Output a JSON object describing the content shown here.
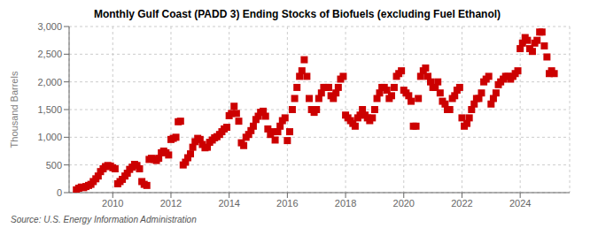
{
  "chart_data": {
    "type": "scatter",
    "title": "Monthly Gulf Coast (PADD 3) Ending Stocks of Biofuels (excluding Fuel Ethanol)",
    "ylabel": "Thousand Barrels",
    "annotations": [
      "Source: U.S. Energy Information Administration"
    ],
    "color": "#cc0000",
    "marker": "square",
    "grid": true,
    "xlim": [
      2008.5,
      2025.7
    ],
    "xticks": [
      2010,
      2012,
      2014,
      2016,
      2018,
      2020,
      2022,
      2024
    ],
    "ylim": [
      0,
      3000
    ],
    "yticks": [
      0,
      500,
      {
        "value": 1000,
        "label": "1,000"
      },
      {
        "value": 1500,
        "label": "1,500"
      },
      {
        "value": 2000,
        "label": "2,000"
      },
      {
        "value": 2500,
        "label": "2,500"
      },
      {
        "value": 3000,
        "label": "3,000"
      }
    ],
    "x": [
      2008.75,
      2008.83,
      2008.92,
      2009.0,
      2009.08,
      2009.17,
      2009.25,
      2009.33,
      2009.42,
      2009.5,
      2009.58,
      2009.67,
      2009.75,
      2009.83,
      2009.92,
      2010.0,
      2010.08,
      2010.17,
      2010.25,
      2010.33,
      2010.42,
      2010.5,
      2010.58,
      2010.67,
      2010.75,
      2010.83,
      2010.92,
      2011.0,
      2011.08,
      2011.17,
      2011.25,
      2011.33,
      2011.42,
      2011.5,
      2011.58,
      2011.67,
      2011.75,
      2011.83,
      2011.92,
      2012.0,
      2012.08,
      2012.17,
      2012.25,
      2012.33,
      2012.42,
      2012.5,
      2012.58,
      2012.67,
      2012.75,
      2012.83,
      2012.92,
      2013.0,
      2013.08,
      2013.17,
      2013.25,
      2013.33,
      2013.42,
      2013.5,
      2013.58,
      2013.67,
      2013.75,
      2013.83,
      2013.92,
      2014.0,
      2014.08,
      2014.17,
      2014.25,
      2014.33,
      2014.42,
      2014.5,
      2014.58,
      2014.67,
      2014.75,
      2014.83,
      2014.92,
      2015.0,
      2015.08,
      2015.17,
      2015.25,
      2015.33,
      2015.42,
      2015.5,
      2015.58,
      2015.67,
      2015.75,
      2015.83,
      2015.92,
      2016.0,
      2016.08,
      2016.17,
      2016.25,
      2016.33,
      2016.42,
      2016.5,
      2016.58,
      2016.67,
      2016.75,
      2016.83,
      2016.92,
      2017.0,
      2017.08,
      2017.17,
      2017.25,
      2017.33,
      2017.42,
      2017.5,
      2017.58,
      2017.67,
      2017.75,
      2017.83,
      2017.92,
      2018.0,
      2018.08,
      2018.17,
      2018.25,
      2018.33,
      2018.42,
      2018.5,
      2018.58,
      2018.67,
      2018.75,
      2018.83,
      2018.92,
      2019.0,
      2019.08,
      2019.17,
      2019.25,
      2019.33,
      2019.42,
      2019.5,
      2019.58,
      2019.67,
      2019.75,
      2019.83,
      2019.92,
      2020.0,
      2020.08,
      2020.17,
      2020.25,
      2020.33,
      2020.42,
      2020.5,
      2020.58,
      2020.67,
      2020.75,
      2020.83,
      2020.92,
      2021.0,
      2021.08,
      2021.17,
      2021.25,
      2021.33,
      2021.42,
      2021.5,
      2021.58,
      2021.67,
      2021.75,
      2021.83,
      2021.92,
      2022.0,
      2022.08,
      2022.17,
      2022.25,
      2022.33,
      2022.42,
      2022.5,
      2022.58,
      2022.67,
      2022.75,
      2022.83,
      2022.92,
      2023.0,
      2023.08,
      2023.17,
      2023.25,
      2023.33,
      2023.42,
      2023.5,
      2023.58,
      2023.67,
      2023.75,
      2023.83,
      2023.92,
      2024.0,
      2024.08,
      2024.17,
      2024.25,
      2024.33,
      2024.42,
      2024.5,
      2024.58,
      2024.67,
      2024.75,
      2024.83,
      2024.92,
      2025.0,
      2025.08,
      2025.17
    ],
    "values": [
      50,
      80,
      100,
      90,
      110,
      130,
      150,
      200,
      250,
      300,
      380,
      430,
      470,
      490,
      480,
      450,
      430,
      160,
      200,
      240,
      300,
      350,
      420,
      460,
      510,
      490,
      430,
      200,
      150,
      130,
      600,
      620,
      600,
      580,
      620,
      720,
      750,
      720,
      680,
      960,
      980,
      1000,
      1280,
      1290,
      500,
      550,
      630,
      700,
      820,
      920,
      980,
      960,
      870,
      810,
      820,
      910,
      950,
      990,
      1010,
      1050,
      1100,
      1150,
      1180,
      1390,
      1430,
      1560,
      1430,
      1290,
      900,
      850,
      1000,
      1050,
      1120,
      1200,
      1320,
      1380,
      1450,
      1470,
      1380,
      1150,
      1050,
      1100,
      950,
      1100,
      1200,
      1300,
      1350,
      940,
      1100,
      1500,
      1700,
      1900,
      2100,
      2200,
      2400,
      2100,
      1700,
      1500,
      1450,
      1500,
      1700,
      1800,
      1900,
      1900,
      1900,
      1750,
      1700,
      1800,
      1900,
      2050,
      2100,
      1400,
      1350,
      1300,
      1250,
      1200,
      1350,
      1400,
      1500,
      1400,
      1350,
      1300,
      1350,
      1500,
      1700,
      1800,
      1900,
      1900,
      1850,
      1700,
      1750,
      1900,
      2100,
      2150,
      2200,
      1850,
      1800,
      1750,
      1650,
      1200,
      1200,
      1700,
      2100,
      2200,
      2250,
      2100,
      2000,
      1900,
      1900,
      2000,
      1800,
      1650,
      1600,
      1500,
      1500,
      1700,
      1750,
      1850,
      1900,
      1350,
      1200,
      1250,
      1350,
      1500,
      1600,
      1700,
      1700,
      1800,
      2000,
      2050,
      2100,
      1600,
      1700,
      1800,
      1950,
      2000,
      2050,
      2100,
      2100,
      2050,
      2100,
      2150,
      2200,
      2600,
      2700,
      2800,
      2750,
      2600,
      2550,
      2700,
      2750,
      2900,
      2900,
      2650,
      2450,
      2150,
      2200,
      2150
    ]
  }
}
